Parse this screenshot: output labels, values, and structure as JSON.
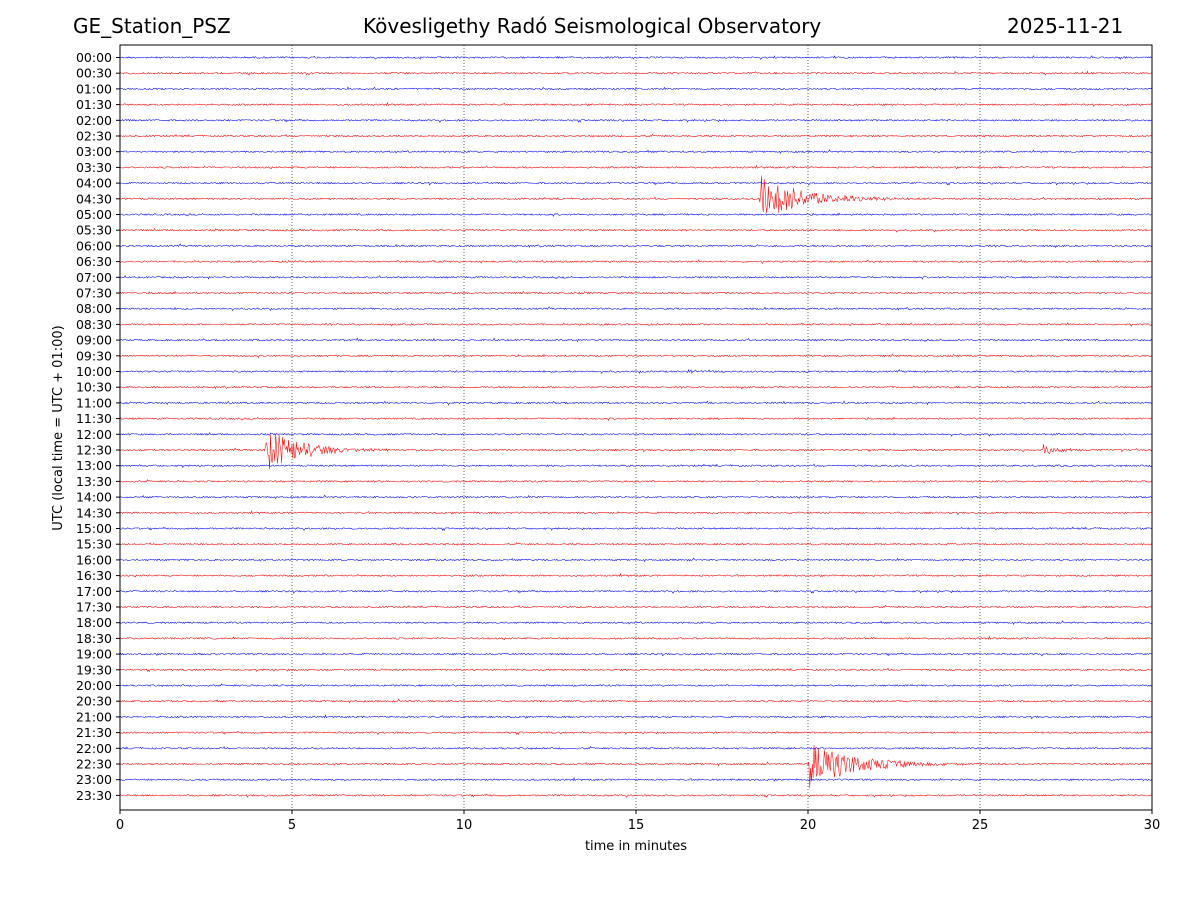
{
  "header": {
    "station": "GE_Station_PSZ",
    "observatory": "Kövesligethy Radó Seismological Observatory",
    "date": "2025-11-21"
  },
  "chart_data": {
    "type": "line",
    "title": "Kövesligethy Radó Seismological Observatory",
    "xlabel": "time in minutes",
    "ylabel": "UTC (local time = UTC + 01:00)",
    "xlim": [
      0,
      30
    ],
    "x_ticks": [
      "0",
      "5",
      "10",
      "15",
      "20",
      "25",
      "30"
    ],
    "grid": "vertical dotted",
    "colors": {
      "even": "#0000ff",
      "odd": "#ff0000"
    },
    "rows": [
      "00:00",
      "00:30",
      "01:00",
      "01:30",
      "02:00",
      "02:30",
      "03:00",
      "03:30",
      "04:00",
      "04:30",
      "05:00",
      "05:30",
      "06:00",
      "06:30",
      "07:00",
      "07:30",
      "08:00",
      "08:30",
      "09:00",
      "09:30",
      "10:00",
      "10:30",
      "11:00",
      "11:30",
      "12:00",
      "12:30",
      "13:00",
      "13:30",
      "14:00",
      "14:30",
      "15:00",
      "15:30",
      "16:00",
      "16:30",
      "17:00",
      "17:30",
      "18:00",
      "18:30",
      "19:00",
      "19:30",
      "20:00",
      "20:30",
      "21:00",
      "21:30",
      "22:00",
      "22:30",
      "23:00",
      "23:30"
    ],
    "events": [
      {
        "row": "04:30",
        "start_min": 18.6,
        "end_min": 25.0,
        "peak": 1.5
      },
      {
        "row": "10:00",
        "start_min": 16.5,
        "end_min": 17.6,
        "peak": 0.25
      },
      {
        "row": "12:30",
        "start_min": 4.2,
        "end_min": 10.0,
        "peak": 1.4
      },
      {
        "row": "12:30",
        "start_min": 26.8,
        "end_min": 30.0,
        "peak": 0.35
      },
      {
        "row": "22:30",
        "start_min": 20.0,
        "end_min": 27.0,
        "peak": 1.6
      }
    ]
  }
}
